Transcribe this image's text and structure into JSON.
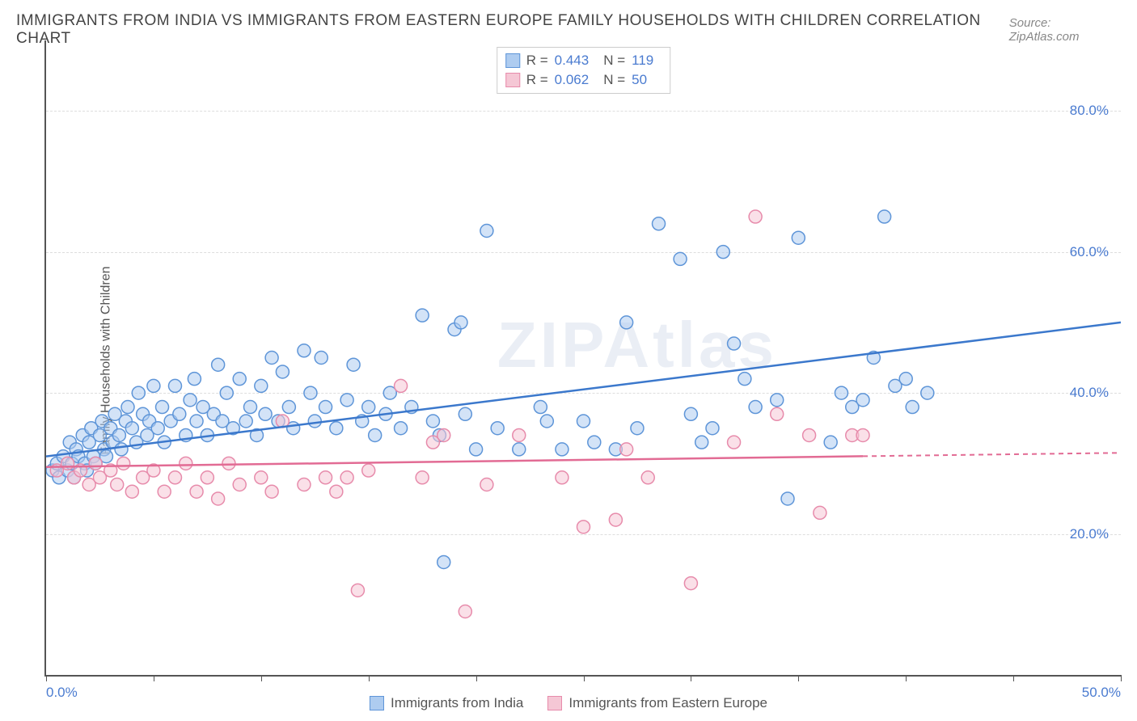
{
  "title": "IMMIGRANTS FROM INDIA VS IMMIGRANTS FROM EASTERN EUROPE FAMILY HOUSEHOLDS WITH CHILDREN CORRELATION CHART",
  "source": "Source: ZipAtlas.com",
  "watermark": "ZIPAtlas",
  "ylabel": "Family Households with Children",
  "chart": {
    "type": "scatter",
    "xlim": [
      0,
      50
    ],
    "ylim": [
      0,
      90
    ],
    "xtick_positions": [
      0,
      5,
      10,
      15,
      20,
      25,
      30,
      35,
      40,
      45,
      50
    ],
    "xtick_labels": {
      "0": "0.0%",
      "50": "50.0%"
    },
    "ytick_positions": [
      20,
      40,
      60,
      80
    ],
    "ytick_labels": {
      "20": "20.0%",
      "40": "40.0%",
      "60": "60.0%",
      "80": "80.0%"
    },
    "grid_color": "#dddddd",
    "background": "#ffffff",
    "axis_color": "#555555",
    "label_color": "#4a7bd0",
    "marker_radius": 8,
    "marker_opacity": 0.55,
    "font_size_labels": 17
  },
  "series": [
    {
      "name": "Immigrants from India",
      "color_fill": "#aeccf0",
      "color_stroke": "#5e95d8",
      "trend_color": "#3b78cc",
      "R": "0.443",
      "N": "119",
      "trend": {
        "x1": 0,
        "y1": 31,
        "x2": 50,
        "y2": 50,
        "solid_until": 50
      },
      "points": [
        [
          0.3,
          29
        ],
        [
          0.5,
          30
        ],
        [
          0.6,
          28
        ],
        [
          0.8,
          31
        ],
        [
          1.0,
          29
        ],
        [
          1.1,
          33
        ],
        [
          1.2,
          30
        ],
        [
          1.3,
          28
        ],
        [
          1.4,
          32
        ],
        [
          1.5,
          31
        ],
        [
          1.7,
          34
        ],
        [
          1.8,
          30
        ],
        [
          1.9,
          29
        ],
        [
          2.0,
          33
        ],
        [
          2.1,
          35
        ],
        [
          2.2,
          31
        ],
        [
          2.3,
          30
        ],
        [
          2.5,
          34
        ],
        [
          2.6,
          36
        ],
        [
          2.7,
          32
        ],
        [
          2.8,
          31
        ],
        [
          3.0,
          35
        ],
        [
          3.1,
          33
        ],
        [
          3.2,
          37
        ],
        [
          3.4,
          34
        ],
        [
          3.5,
          32
        ],
        [
          3.7,
          36
        ],
        [
          3.8,
          38
        ],
        [
          4.0,
          35
        ],
        [
          4.2,
          33
        ],
        [
          4.3,
          40
        ],
        [
          4.5,
          37
        ],
        [
          4.7,
          34
        ],
        [
          4.8,
          36
        ],
        [
          5.0,
          41
        ],
        [
          5.2,
          35
        ],
        [
          5.4,
          38
        ],
        [
          5.5,
          33
        ],
        [
          5.8,
          36
        ],
        [
          6.0,
          41
        ],
        [
          6.2,
          37
        ],
        [
          6.5,
          34
        ],
        [
          6.7,
          39
        ],
        [
          6.9,
          42
        ],
        [
          7.0,
          36
        ],
        [
          7.3,
          38
        ],
        [
          7.5,
          34
        ],
        [
          7.8,
          37
        ],
        [
          8.0,
          44
        ],
        [
          8.2,
          36
        ],
        [
          8.4,
          40
        ],
        [
          8.7,
          35
        ],
        [
          9.0,
          42
        ],
        [
          9.3,
          36
        ],
        [
          9.5,
          38
        ],
        [
          9.8,
          34
        ],
        [
          10.0,
          41
        ],
        [
          10.2,
          37
        ],
        [
          10.5,
          45
        ],
        [
          10.8,
          36
        ],
        [
          11.0,
          43
        ],
        [
          11.3,
          38
        ],
        [
          11.5,
          35
        ],
        [
          12.0,
          46
        ],
        [
          12.3,
          40
        ],
        [
          12.5,
          36
        ],
        [
          12.8,
          45
        ],
        [
          13.0,
          38
        ],
        [
          13.5,
          35
        ],
        [
          14.0,
          39
        ],
        [
          14.3,
          44
        ],
        [
          14.7,
          36
        ],
        [
          15.0,
          38
        ],
        [
          15.3,
          34
        ],
        [
          15.8,
          37
        ],
        [
          16.0,
          40
        ],
        [
          16.5,
          35
        ],
        [
          17.0,
          38
        ],
        [
          17.5,
          51
        ],
        [
          18.0,
          36
        ],
        [
          18.3,
          34
        ],
        [
          18.5,
          16
        ],
        [
          19.0,
          49
        ],
        [
          19.3,
          50
        ],
        [
          19.5,
          37
        ],
        [
          20.0,
          32
        ],
        [
          20.5,
          63
        ],
        [
          21.0,
          35
        ],
        [
          22.0,
          32
        ],
        [
          23.0,
          38
        ],
        [
          23.3,
          36
        ],
        [
          24.0,
          32
        ],
        [
          25.0,
          36
        ],
        [
          25.5,
          33
        ],
        [
          26.5,
          32
        ],
        [
          27.0,
          50
        ],
        [
          27.5,
          35
        ],
        [
          28.5,
          64
        ],
        [
          29.5,
          59
        ],
        [
          30.0,
          37
        ],
        [
          30.5,
          33
        ],
        [
          31.0,
          35
        ],
        [
          31.5,
          60
        ],
        [
          32.0,
          47
        ],
        [
          32.5,
          42
        ],
        [
          33.0,
          38
        ],
        [
          34.0,
          39
        ],
        [
          35.0,
          62
        ],
        [
          36.5,
          33
        ],
        [
          37.0,
          40
        ],
        [
          37.5,
          38
        ],
        [
          38.5,
          45
        ],
        [
          39.0,
          65
        ],
        [
          39.5,
          41
        ],
        [
          40.0,
          42
        ],
        [
          40.3,
          38
        ],
        [
          41.0,
          40
        ],
        [
          34.5,
          25
        ],
        [
          38.0,
          39
        ]
      ]
    },
    {
      "name": "Immigrants from Eastern Europe",
      "color_fill": "#f5c7d5",
      "color_stroke": "#e78bab",
      "trend_color": "#e26b94",
      "R": "0.062",
      "N": "50",
      "trend": {
        "x1": 0,
        "y1": 29.5,
        "x2": 50,
        "y2": 31.5,
        "solid_until": 38
      },
      "points": [
        [
          0.5,
          29
        ],
        [
          1.0,
          30
        ],
        [
          1.3,
          28
        ],
        [
          1.6,
          29
        ],
        [
          2.0,
          27
        ],
        [
          2.3,
          30
        ],
        [
          2.5,
          28
        ],
        [
          3.0,
          29
        ],
        [
          3.3,
          27
        ],
        [
          3.6,
          30
        ],
        [
          4.0,
          26
        ],
        [
          4.5,
          28
        ],
        [
          5.0,
          29
        ],
        [
          5.5,
          26
        ],
        [
          6.0,
          28
        ],
        [
          6.5,
          30
        ],
        [
          7.0,
          26
        ],
        [
          7.5,
          28
        ],
        [
          8.0,
          25
        ],
        [
          8.5,
          30
        ],
        [
          9.0,
          27
        ],
        [
          10.0,
          28
        ],
        [
          10.5,
          26
        ],
        [
          11.0,
          36
        ],
        [
          12.0,
          27
        ],
        [
          13.0,
          28
        ],
        [
          13.5,
          26
        ],
        [
          14.0,
          28
        ],
        [
          14.5,
          12
        ],
        [
          15.0,
          29
        ],
        [
          16.5,
          41
        ],
        [
          17.5,
          28
        ],
        [
          18.0,
          33
        ],
        [
          18.5,
          34
        ],
        [
          19.5,
          9
        ],
        [
          20.5,
          27
        ],
        [
          22.0,
          34
        ],
        [
          24.0,
          28
        ],
        [
          25.0,
          21
        ],
        [
          26.5,
          22
        ],
        [
          27.0,
          32
        ],
        [
          28.0,
          28
        ],
        [
          30.0,
          13
        ],
        [
          32.0,
          33
        ],
        [
          33.0,
          65
        ],
        [
          34.0,
          37
        ],
        [
          35.5,
          34
        ],
        [
          36.0,
          23
        ],
        [
          37.5,
          34
        ],
        [
          38.0,
          34
        ]
      ]
    }
  ],
  "legend_labels": {
    "r_prefix": "R = ",
    "n_prefix": "N = "
  }
}
